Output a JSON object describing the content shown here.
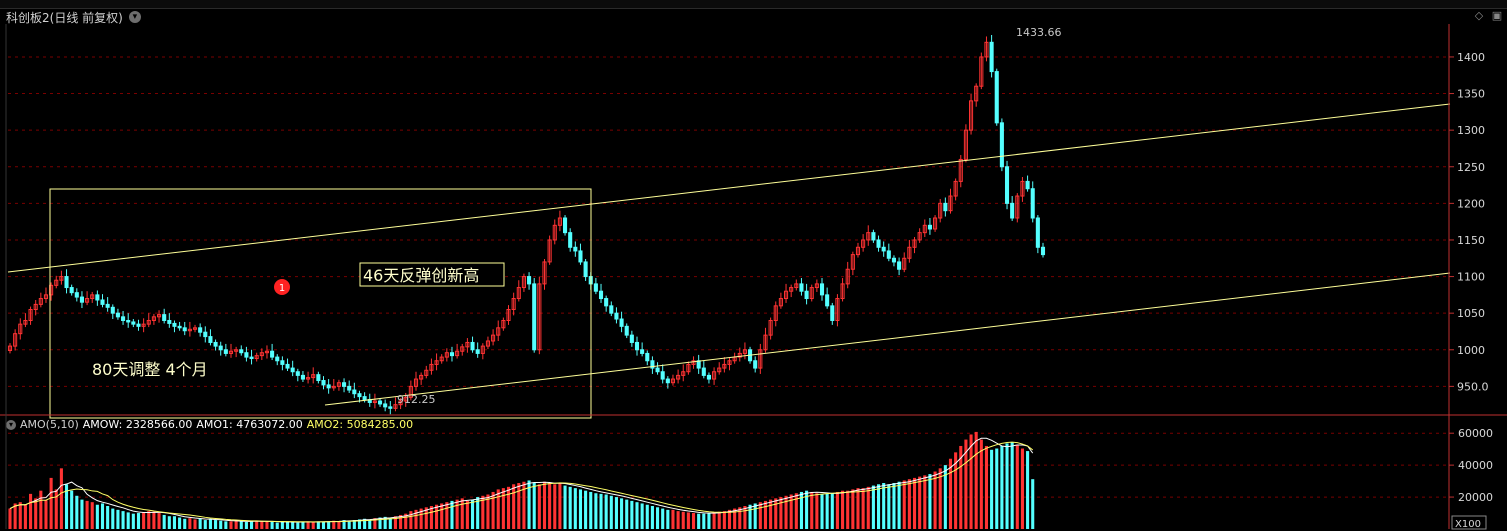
{
  "header": {
    "title": "科创板2(日线 前复权)",
    "dropdown_icon": "chevron-down-icon"
  },
  "colors": {
    "up": "#ff3333",
    "down": "#54ffff",
    "line": "#ffff99",
    "grid": "#7a0000",
    "axis": "#c03030"
  },
  "chart_data": {
    "type": "candlestick",
    "y_ticks": [
      "1400",
      "1350",
      "1300",
      "1250",
      "1200",
      "1150",
      "1100",
      "1050",
      "1000",
      "950.0"
    ],
    "ylim": [
      915,
      1445
    ],
    "high_label": "1433.66",
    "low_label": "912.25",
    "annotations": {
      "rebound": "46天反弹创新高",
      "adjust": "80天调整 4个月",
      "marker": "1"
    },
    "closes": [
      1005,
      1022,
      1035,
      1040,
      1055,
      1062,
      1070,
      1075,
      1088,
      1095,
      1100,
      1085,
      1078,
      1072,
      1065,
      1070,
      1075,
      1068,
      1062,
      1058,
      1050,
      1045,
      1040,
      1038,
      1035,
      1032,
      1035,
      1040,
      1045,
      1048,
      1040,
      1036,
      1032,
      1030,
      1026,
      1028,
      1030,
      1024,
      1018,
      1010,
      1005,
      1000,
      995,
      998,
      1000,
      996,
      990,
      988,
      992,
      996,
      998,
      990,
      985,
      980,
      975,
      970,
      965,
      960,
      962,
      966,
      958,
      952,
      948,
      950,
      955,
      950,
      945,
      940,
      936,
      932,
      928,
      930,
      926,
      922,
      920,
      925,
      930,
      935,
      950,
      960,
      965,
      972,
      980,
      985,
      990,
      996,
      992,
      998,
      1004,
      1010,
      1000,
      995,
      1005,
      1012,
      1020,
      1030,
      1040,
      1055,
      1070,
      1085,
      1100,
      1090,
      1000,
      1090,
      1120,
      1150,
      1170,
      1180,
      1160,
      1140,
      1135,
      1120,
      1100,
      1090,
      1080,
      1070,
      1060,
      1050,
      1042,
      1032,
      1020,
      1010,
      1000,
      995,
      985,
      975,
      970,
      960,
      955,
      960,
      965,
      970,
      980,
      985,
      975,
      965,
      960,
      970,
      975,
      980,
      985,
      990,
      995,
      1000,
      985,
      975,
      1000,
      1020,
      1040,
      1060,
      1070,
      1080,
      1085,
      1090,
      1080,
      1070,
      1085,
      1090,
      1075,
      1060,
      1040,
      1070,
      1090,
      1110,
      1130,
      1140,
      1150,
      1160,
      1150,
      1140,
      1135,
      1125,
      1120,
      1110,
      1125,
      1140,
      1150,
      1160,
      1170,
      1165,
      1180,
      1200,
      1190,
      1210,
      1230,
      1260,
      1300,
      1340,
      1360,
      1400,
      1420,
      1380,
      1310,
      1250,
      1200,
      1180,
      1210,
      1230,
      1220,
      1180,
      1140,
      1130
    ],
    "amo_indicator": {
      "label": "AMO(5,10)",
      "amow": "AMOW: 2328566.00",
      "amo1": "AMO1: 4763072.00",
      "amo2": "AMO2: 5084285.00"
    },
    "vol_ticks": [
      "60000",
      "40000",
      "20000"
    ],
    "vol_unit": "X100",
    "volumes": [
      32,
      40,
      42,
      38,
      55,
      48,
      60,
      45,
      80,
      62,
      95,
      70,
      60,
      52,
      46,
      44,
      42,
      38,
      40,
      36,
      32,
      30,
      28,
      26,
      24,
      25,
      26,
      28,
      27,
      25,
      22,
      20,
      20,
      18,
      16,
      17,
      15,
      16,
      14,
      15,
      14,
      13,
      12,
      12,
      13,
      12,
      11,
      12,
      13,
      12,
      12,
      11,
      10,
      11,
      12,
      11,
      10,
      11,
      12,
      11,
      12,
      11,
      12,
      13,
      12,
      14,
      13,
      14,
      15,
      16,
      15,
      17,
      18,
      19,
      18,
      20,
      22,
      24,
      28,
      30,
      32,
      34,
      36,
      38,
      40,
      42,
      44,
      46,
      48,
      44,
      46,
      50,
      52,
      54,
      58,
      62,
      64,
      66,
      70,
      72,
      74,
      76,
      72,
      70,
      74,
      72,
      70,
      72,
      68,
      66,
      64,
      62,
      60,
      58,
      56,
      55,
      54,
      52,
      50,
      48,
      46,
      44,
      42,
      40,
      38,
      36,
      34,
      32,
      30,
      30,
      28,
      27,
      26,
      25,
      24,
      24,
      25,
      26,
      27,
      28,
      30,
      32,
      34,
      36,
      38,
      40,
      42,
      44,
      46,
      48,
      50,
      52,
      54,
      56,
      58,
      60,
      58,
      56,
      54,
      55,
      56,
      58,
      60,
      60,
      62,
      64,
      64,
      66,
      68,
      70,
      72,
      70,
      72,
      74,
      76,
      78,
      80,
      82,
      84,
      86,
      90,
      95,
      100,
      110,
      120,
      130,
      140,
      148,
      152,
      140,
      130,
      124,
      126,
      130,
      134,
      136,
      132,
      126,
      122,
      78
    ]
  }
}
